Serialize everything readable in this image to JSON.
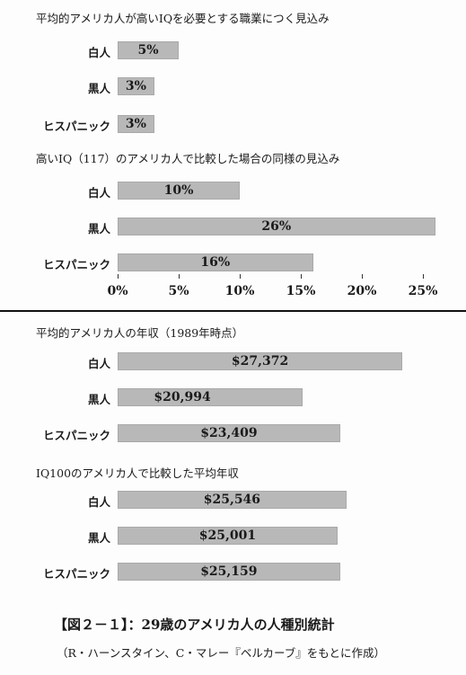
{
  "chart_data": [
    {
      "type": "bar",
      "title": "平均的アメリカ人が高いIQを必要とする職業につく見込み",
      "categories": [
        "白人",
        "黒人",
        "ヒスパニック"
      ],
      "values": [
        5,
        3,
        3
      ],
      "value_labels": [
        "5%",
        "3%",
        "3%"
      ],
      "xlim": [
        0,
        26
      ],
      "xticks": [
        "0%",
        "5%",
        "10%",
        "15%",
        "20%",
        "25%"
      ]
    },
    {
      "type": "bar",
      "title": "高いIQ（117）のアメリカ人で比較した場合の同様の見込み",
      "categories": [
        "白人",
        "黒人",
        "ヒスパニック"
      ],
      "values": [
        10,
        26,
        16
      ],
      "value_labels": [
        "10%",
        "26%",
        "16%"
      ],
      "xlim": [
        0,
        26
      ],
      "xticks": [
        "0%",
        "5%",
        "10%",
        "15%",
        "20%",
        "25%"
      ]
    },
    {
      "type": "bar",
      "title": "平均的アメリカ人の年収（1989年時点）",
      "categories": [
        "白人",
        "黒人",
        "ヒスパニック"
      ],
      "values": [
        27372,
        20994,
        23409
      ],
      "value_labels": [
        "$27,372",
        "$20,994",
        "$23,409"
      ]
    },
    {
      "type": "bar",
      "title": "IQ100のアメリカ人で比較した平均年収",
      "categories": [
        "白人",
        "黒人",
        "ヒスパニック"
      ],
      "values": [
        25546,
        25001,
        25159
      ],
      "value_labels": [
        "$25,546",
        "$25,001",
        "$25,159"
      ]
    }
  ],
  "caption": "【図２－１】：29歳のアメリカ人の人種別統計",
  "source": "（R・ハーンスタイン、C・マレー『ベルカーブ』をもとに作成）"
}
